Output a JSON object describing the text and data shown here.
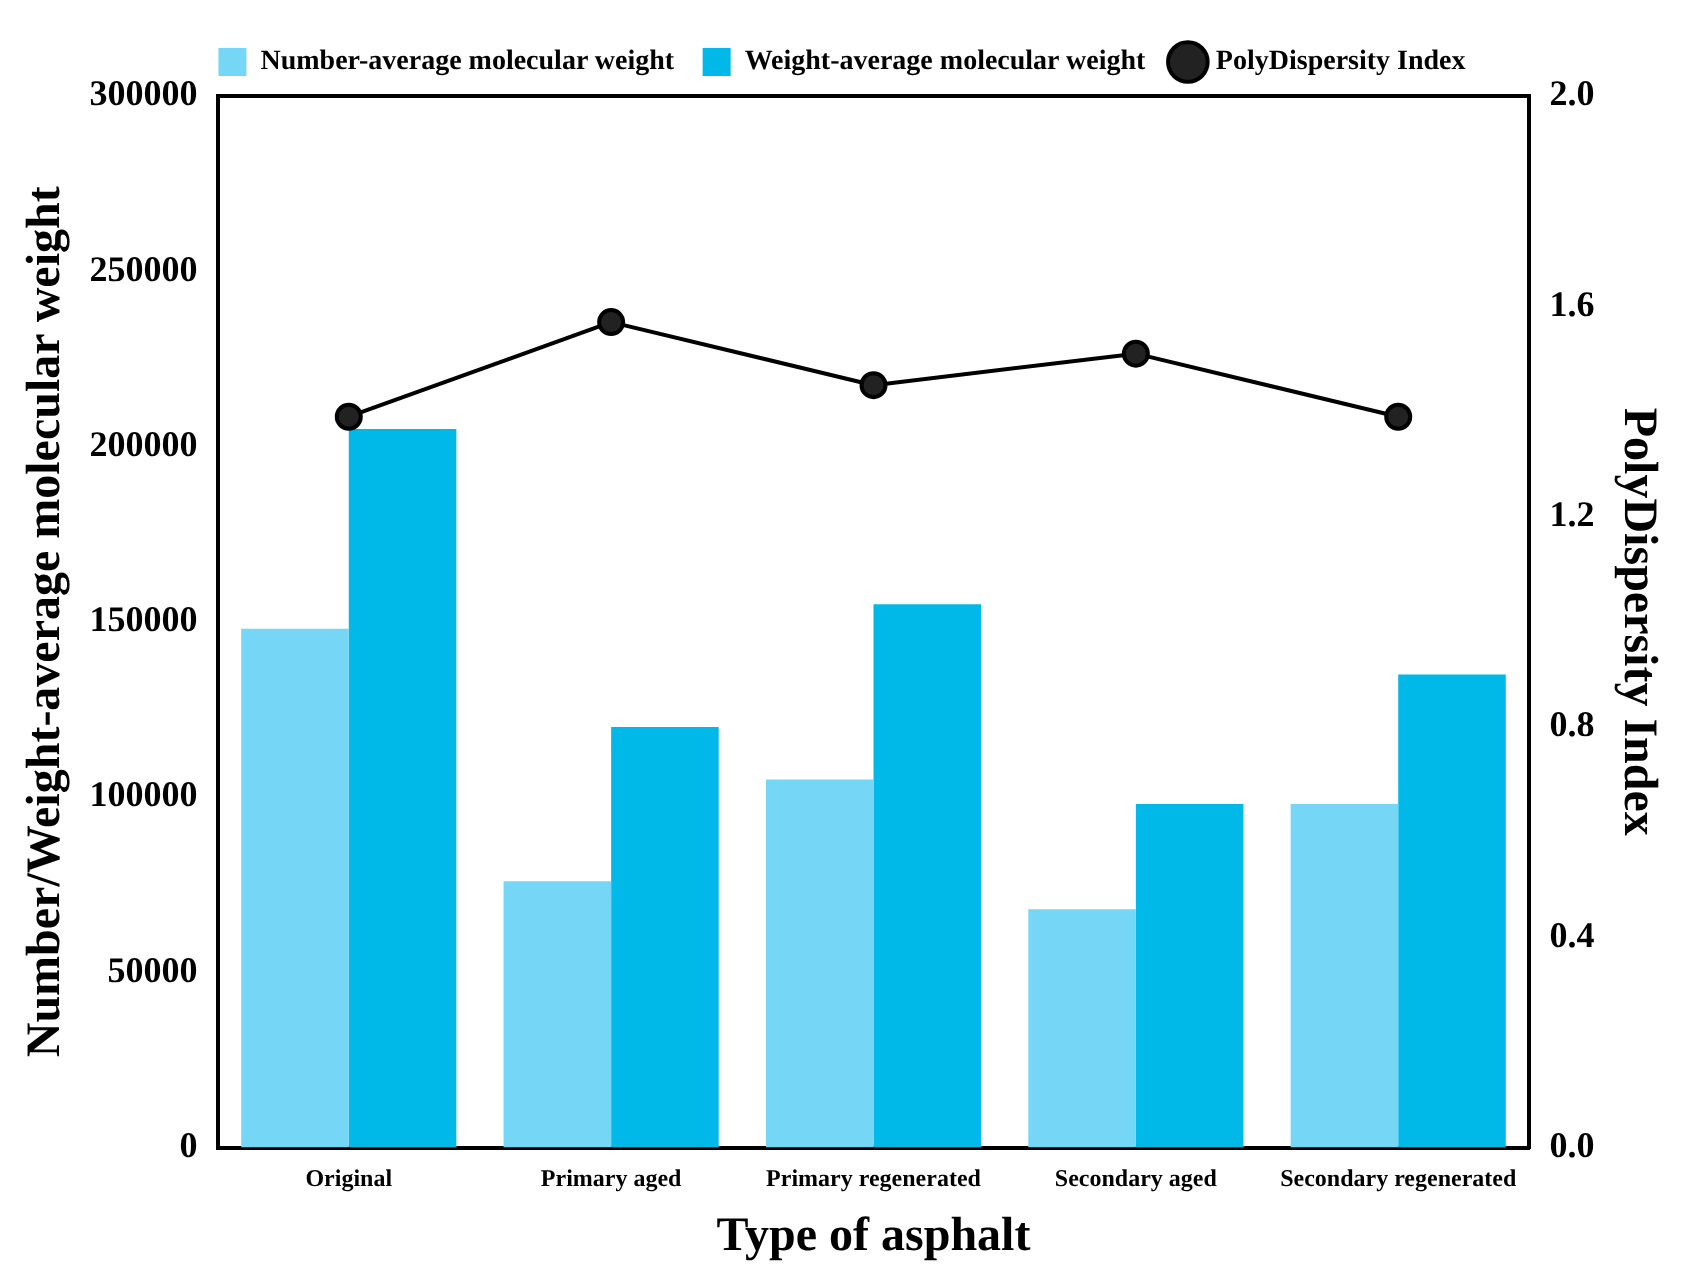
{
  "chart_data": {
    "type": "bar",
    "xlabel": "Type of asphalt",
    "ylabel": "Number/Weight-average molecular weight",
    "y2label": "PolyDispersity Index",
    "categories": [
      "Original",
      "Primary aged",
      "Primary regenerated",
      "Secondary aged",
      "Secondary regenerated"
    ],
    "series": [
      {
        "name": "Number-average molecular weight",
        "color": "#76d6f5",
        "values": [
          148000,
          76000,
          105000,
          68000,
          98000
        ]
      },
      {
        "name": "Weight-average molecular weight",
        "color": "#00b9e8",
        "values": [
          205000,
          120000,
          155000,
          98000,
          135000
        ]
      },
      {
        "name": "PolyDispersity Index",
        "type": "line",
        "axis": "y2",
        "color": "#000000",
        "values": [
          1.39,
          1.57,
          1.45,
          1.51,
          1.39
        ]
      }
    ],
    "ylim": [
      0,
      300000
    ],
    "yticks": [
      0,
      50000,
      100000,
      150000,
      200000,
      250000,
      300000
    ],
    "y2lim": [
      0,
      2
    ],
    "y2ticks": [
      {
        "value": 0,
        "label": "0.0"
      },
      {
        "value": 0.4,
        "label": "0.4"
      },
      {
        "value": 0.8,
        "label": "0.8"
      },
      {
        "value": 1.2,
        "label": "1.2"
      },
      {
        "value": 1.6,
        "label": "1.6"
      },
      {
        "value": 2,
        "label": "2.0"
      }
    ],
    "legend": "top",
    "marker": "circle",
    "grid": false
  }
}
